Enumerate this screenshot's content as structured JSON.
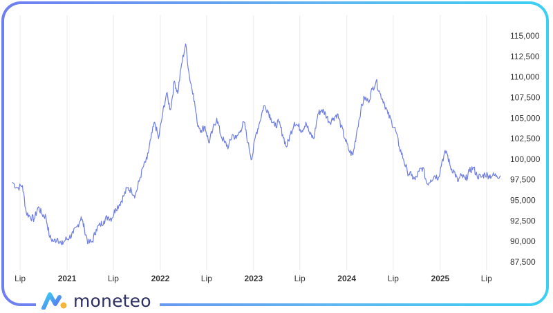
{
  "brand": {
    "name": "moneteo",
    "logo_icon": "moneteo-logo-icon",
    "accent": "#3ad0f2",
    "primary": "#2e2f63"
  },
  "chart_data": {
    "type": "line",
    "title": "",
    "xlabel": "",
    "ylabel": "",
    "line_color": "#6f7ee0",
    "grid": {
      "vertical": true,
      "horizontal": false
    },
    "ylim": [
      86500,
      116000
    ],
    "yticks": [
      87500,
      90000,
      92500,
      95000,
      97500,
      100000,
      102500,
      105000,
      107500,
      110000,
      112500,
      115000
    ],
    "ytick_labels": [
      "87,500",
      "90,000",
      "92,500",
      "95,000",
      "97,500",
      "100,000",
      "102,500",
      "105,000",
      "107,500",
      "110,000",
      "112,500",
      "115,000"
    ],
    "xlim": [
      "2020-06-01",
      "2025-09-10"
    ],
    "xticks": [
      {
        "date": "2020-07-01",
        "label": "Lip",
        "bold": false
      },
      {
        "date": "2021-01-01",
        "label": "2021",
        "bold": true
      },
      {
        "date": "2021-07-01",
        "label": "Lip",
        "bold": false
      },
      {
        "date": "2022-01-01",
        "label": "2022",
        "bold": true
      },
      {
        "date": "2022-07-01",
        "label": "Lip",
        "bold": false
      },
      {
        "date": "2023-01-01",
        "label": "2023",
        "bold": true
      },
      {
        "date": "2023-07-01",
        "label": "Lip",
        "bold": false
      },
      {
        "date": "2024-01-01",
        "label": "2024",
        "bold": true
      },
      {
        "date": "2024-07-01",
        "label": "Lip",
        "bold": false
      },
      {
        "date": "2025-01-01",
        "label": "2025",
        "bold": true
      },
      {
        "date": "2025-07-01",
        "label": "Lip",
        "bold": false
      }
    ],
    "series": [
      {
        "x": [
          "2020-06-01",
          "2020-06-20",
          "2020-07-10",
          "2020-07-25",
          "2020-08-10",
          "2020-08-25",
          "2020-09-10",
          "2020-09-25",
          "2020-10-10",
          "2020-10-25",
          "2020-11-10",
          "2020-11-25",
          "2020-12-10",
          "2020-12-25",
          "2021-01-10",
          "2021-01-25",
          "2021-02-10",
          "2021-02-25",
          "2021-03-10",
          "2021-03-25",
          "2021-04-10",
          "2021-04-25",
          "2021-05-10",
          "2021-05-25",
          "2021-06-10",
          "2021-06-25",
          "2021-07-10",
          "2021-07-25",
          "2021-08-10",
          "2021-08-25",
          "2021-09-10",
          "2021-09-25",
          "2021-10-10",
          "2021-10-25",
          "2021-11-10",
          "2021-11-25",
          "2021-12-10",
          "2021-12-25",
          "2022-01-10",
          "2022-01-25",
          "2022-02-10",
          "2022-02-25",
          "2022-03-10",
          "2022-03-25",
          "2022-04-10",
          "2022-04-25",
          "2022-05-10",
          "2022-05-25",
          "2022-06-10",
          "2022-06-25",
          "2022-07-10",
          "2022-07-25",
          "2022-08-10",
          "2022-08-25",
          "2022-09-10",
          "2022-09-25",
          "2022-10-10",
          "2022-10-25",
          "2022-11-10",
          "2022-11-25",
          "2022-12-10",
          "2022-12-25",
          "2023-01-10",
          "2023-01-25",
          "2023-02-10",
          "2023-02-25",
          "2023-03-10",
          "2023-03-25",
          "2023-04-10",
          "2023-04-25",
          "2023-05-10",
          "2023-05-25",
          "2023-06-10",
          "2023-06-25",
          "2023-07-10",
          "2023-07-25",
          "2023-08-10",
          "2023-08-25",
          "2023-09-10",
          "2023-09-25",
          "2023-10-10",
          "2023-10-25",
          "2023-11-10",
          "2023-11-25",
          "2023-12-10",
          "2023-12-25",
          "2024-01-10",
          "2024-01-25",
          "2024-02-10",
          "2024-02-25",
          "2024-03-10",
          "2024-03-25",
          "2024-04-10",
          "2024-04-25",
          "2024-05-10",
          "2024-05-25",
          "2024-06-10",
          "2024-06-25",
          "2024-07-10",
          "2024-07-25",
          "2024-08-10",
          "2024-08-25",
          "2024-09-10",
          "2024-09-25",
          "2024-10-10",
          "2024-10-25",
          "2024-11-10",
          "2024-11-25",
          "2024-12-10",
          "2024-12-25",
          "2025-01-10",
          "2025-01-25",
          "2025-02-10",
          "2025-02-25",
          "2025-03-10",
          "2025-03-25",
          "2025-04-10",
          "2025-04-25",
          "2025-05-10",
          "2025-05-25",
          "2025-06-10",
          "2025-06-25",
          "2025-07-10",
          "2025-07-25",
          "2025-08-10",
          "2025-08-25"
        ],
        "values": [
          97200,
          96500,
          96800,
          93500,
          93000,
          92700,
          94200,
          93300,
          93000,
          90500,
          90000,
          90400,
          89600,
          90200,
          90500,
          91000,
          91800,
          93000,
          91500,
          89800,
          90000,
          91500,
          92000,
          92500,
          93000,
          92800,
          94000,
          94500,
          95500,
          96500,
          96200,
          95600,
          97300,
          99000,
          100000,
          102500,
          104500,
          102500,
          105500,
          108000,
          106000,
          109500,
          108000,
          111500,
          114000,
          110000,
          108000,
          104500,
          103500,
          104000,
          102000,
          103500,
          105000,
          103000,
          102000,
          101500,
          103000,
          102500,
          103500,
          104500,
          102000,
          100000,
          103000,
          104500,
          106500,
          106000,
          105000,
          104000,
          104500,
          103000,
          101500,
          103000,
          104500,
          104000,
          103500,
          104500,
          103000,
          102500,
          105500,
          106000,
          105500,
          104500,
          105000,
          105500,
          104000,
          102500,
          101000,
          100500,
          103500,
          106000,
          107500,
          107000,
          108500,
          109500,
          108000,
          107000,
          105500,
          104500,
          103500,
          101500,
          100000,
          98500,
          98000,
          97500,
          98500,
          99000,
          97000,
          97500,
          98000,
          97800,
          100000,
          101000,
          99000,
          98500,
          97300,
          98000,
          97500,
          98500,
          99000,
          98000,
          97800,
          98200,
          98000,
          98000,
          98000,
          98000
        ]
      }
    ]
  }
}
